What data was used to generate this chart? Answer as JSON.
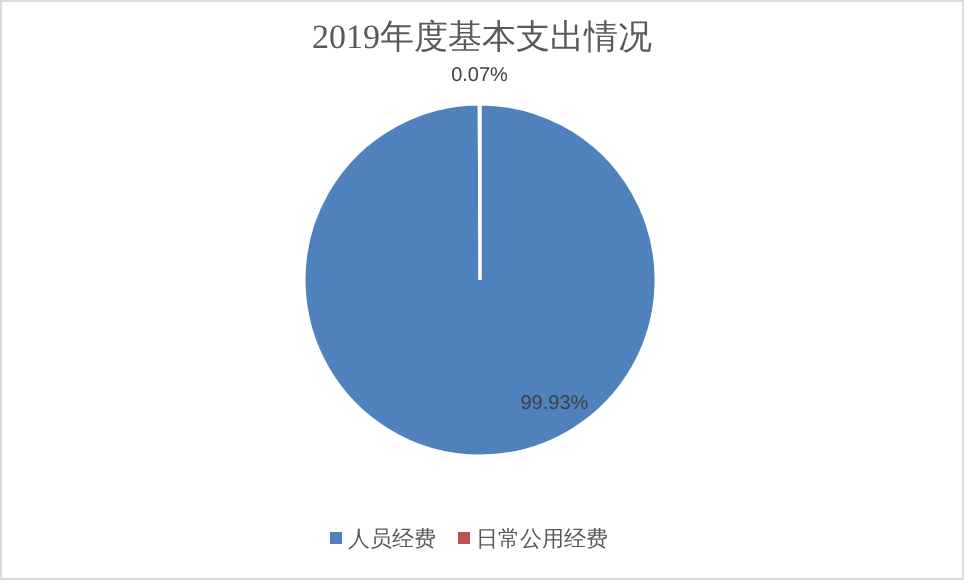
{
  "chart_data": {
    "type": "pie",
    "title": "2019年度基本支出情况",
    "categories": [
      "人员经费",
      "日常公用经费"
    ],
    "values": [
      99.93,
      0.07
    ],
    "colors": [
      "#4f81bd",
      "#c0504d"
    ],
    "value_labels": [
      "99.93%",
      "0.07%"
    ],
    "legend": "bottom"
  }
}
